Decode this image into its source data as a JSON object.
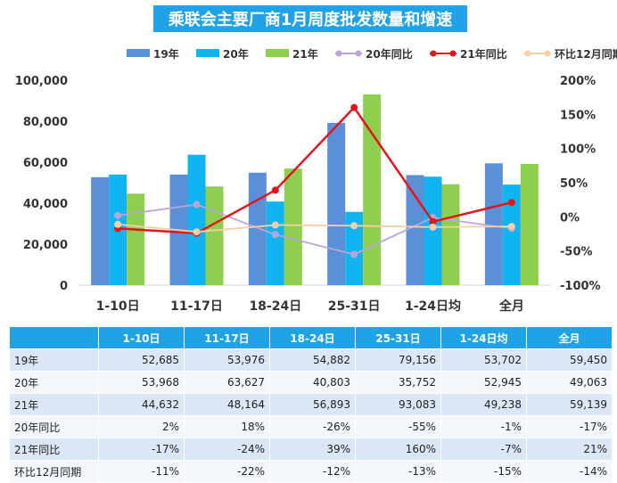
{
  "title": "乘联会主要厂商1月周度批发数量和增速",
  "colors": {
    "title_bg": "#1fa3e6",
    "header_bg": "#1fa3e6",
    "series": [
      "#5b8fd6",
      "#10b4f0",
      "#8fcf4f",
      "#b9a6d8",
      "#e3141c",
      "#f6cfa6"
    ]
  },
  "chart_data": {
    "type": "bar",
    "categories": [
      "1-10日",
      "11-17日",
      "18-24日",
      "25-31日",
      "1-24日均",
      "全月"
    ],
    "series": [
      {
        "name": "19年",
        "kind": "bar",
        "axis": "left",
        "values": [
          52685,
          53976,
          54882,
          79156,
          53702,
          59450
        ]
      },
      {
        "name": "20年",
        "kind": "bar",
        "axis": "left",
        "values": [
          53968,
          63627,
          40803,
          35752,
          52945,
          49063
        ]
      },
      {
        "name": "21年",
        "kind": "bar",
        "axis": "left",
        "values": [
          44632,
          48164,
          56893,
          93083,
          49238,
          59139
        ]
      },
      {
        "name": "20年同比",
        "kind": "line",
        "axis": "right",
        "values": [
          2,
          18,
          -26,
          -55,
          -1,
          -17
        ]
      },
      {
        "name": "21年同比",
        "kind": "line",
        "axis": "right",
        "values": [
          -17,
          -24,
          39,
          160,
          -7,
          21
        ]
      },
      {
        "name": "环比12月同期",
        "kind": "line",
        "axis": "right",
        "values": [
          -11,
          -22,
          -12,
          -13,
          -15,
          -14
        ]
      }
    ],
    "y_left": {
      "range": [
        0,
        100000
      ],
      "ticks": [
        "0",
        "20,000",
        "40,000",
        "60,000",
        "80,000",
        "100,000"
      ]
    },
    "y_right": {
      "range": [
        -100,
        200
      ],
      "unit": "%",
      "ticks": [
        "-100%",
        "-50%",
        "0%",
        "50%",
        "100%",
        "150%",
        "200%"
      ]
    },
    "legend_position": "top",
    "grid": false
  },
  "table": {
    "headers": [
      "1-10日",
      "11-17日",
      "18-24日",
      "25-31日",
      "1-24日均",
      "全月"
    ],
    "rows": [
      {
        "label": "19年",
        "cells": [
          "52,685",
          "53,976",
          "54,882",
          "79,156",
          "53,702",
          "59,450"
        ]
      },
      {
        "label": "20年",
        "cells": [
          "53,968",
          "63,627",
          "40,803",
          "35,752",
          "52,945",
          "49,063"
        ]
      },
      {
        "label": "21年",
        "cells": [
          "44,632",
          "48,164",
          "56,893",
          "93,083",
          "49,238",
          "59,139"
        ]
      },
      {
        "label": "20年同比",
        "cells": [
          "2%",
          "18%",
          "-26%",
          "-55%",
          "-1%",
          "-17%"
        ]
      },
      {
        "label": "21年同比",
        "cells": [
          "-17%",
          "-24%",
          "39%",
          "160%",
          "-7%",
          "21%"
        ]
      },
      {
        "label": "环比12月同期",
        "cells": [
          "-11%",
          "-22%",
          "-12%",
          "-13%",
          "-15%",
          "-14%"
        ]
      }
    ]
  }
}
